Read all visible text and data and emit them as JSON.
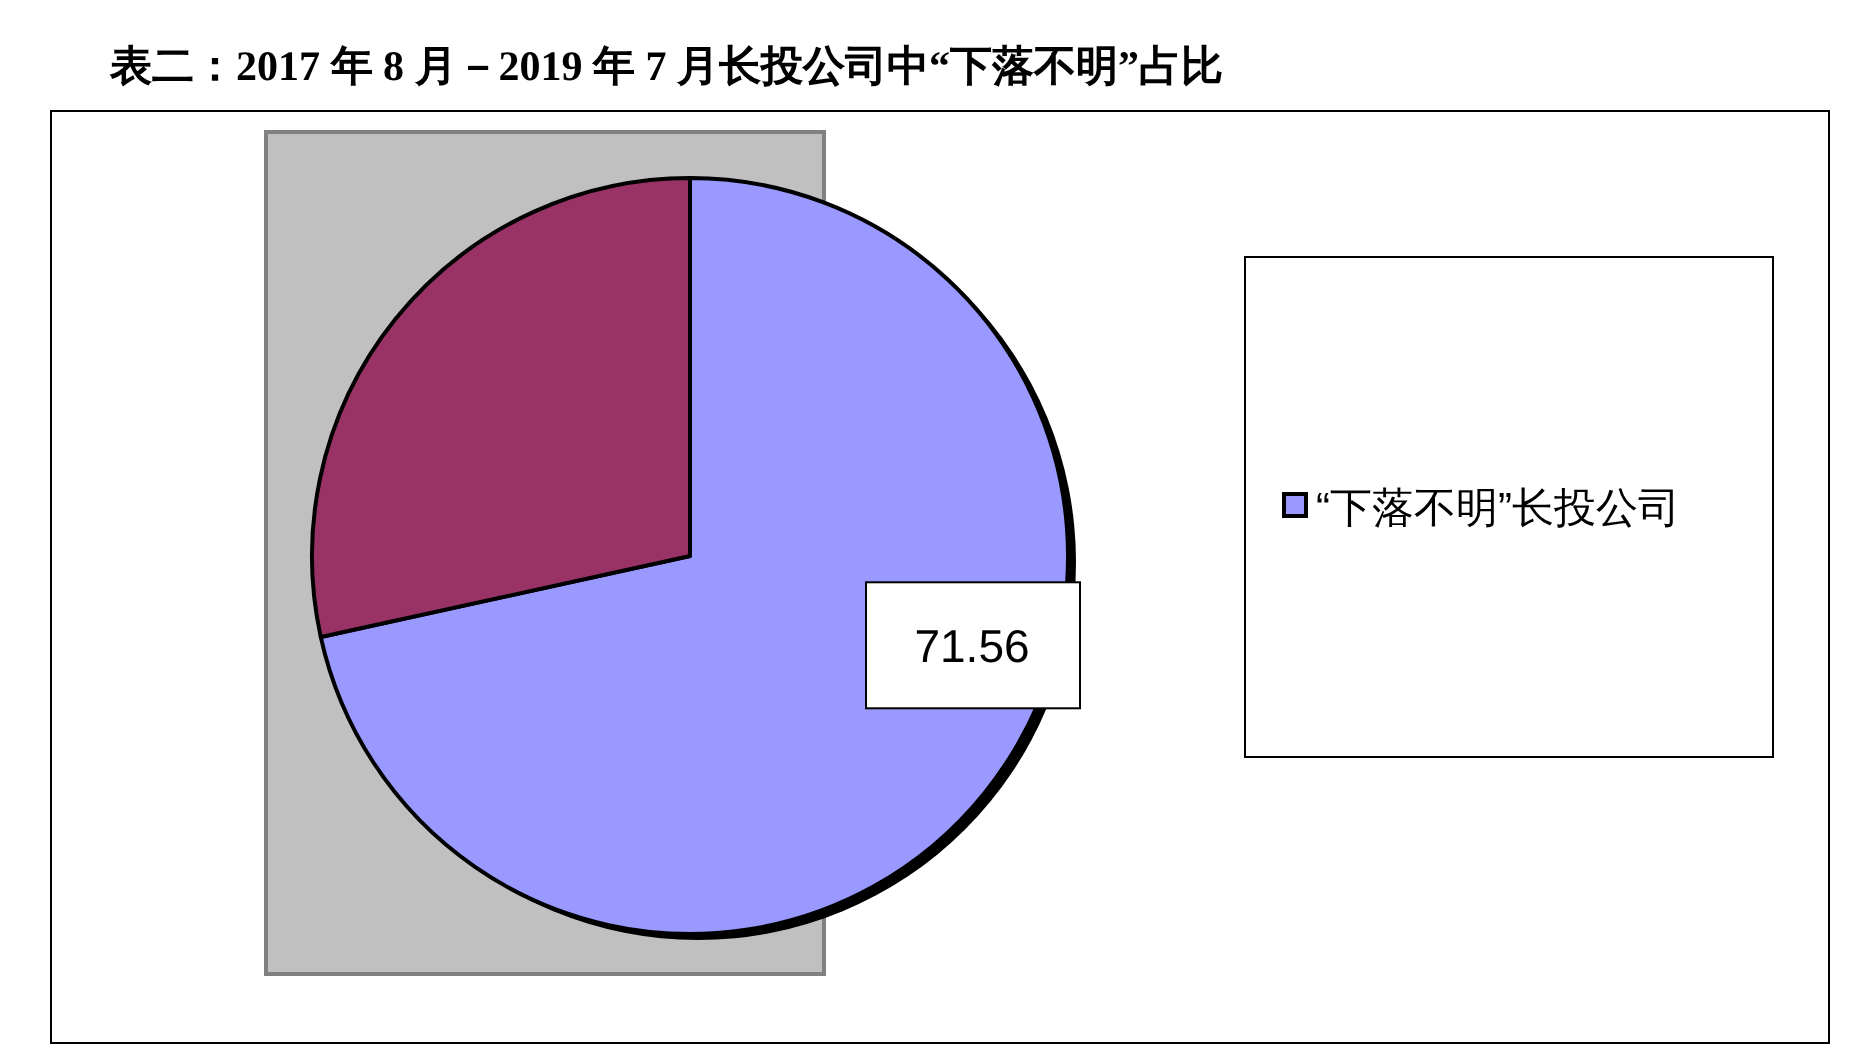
{
  "chart_data": {
    "type": "pie",
    "title": "表二：2017 年 8 月－2019 年 7 月长投公司中“下落不明”占比",
    "categories": [
      "“下落不明”长投公司",
      null
    ],
    "values": [
      71.56,
      28.44
    ],
    "colors": [
      "#9999ff",
      "#993366"
    ],
    "value_labels": [
      "71.56",
      null
    ],
    "legend": "right"
  }
}
